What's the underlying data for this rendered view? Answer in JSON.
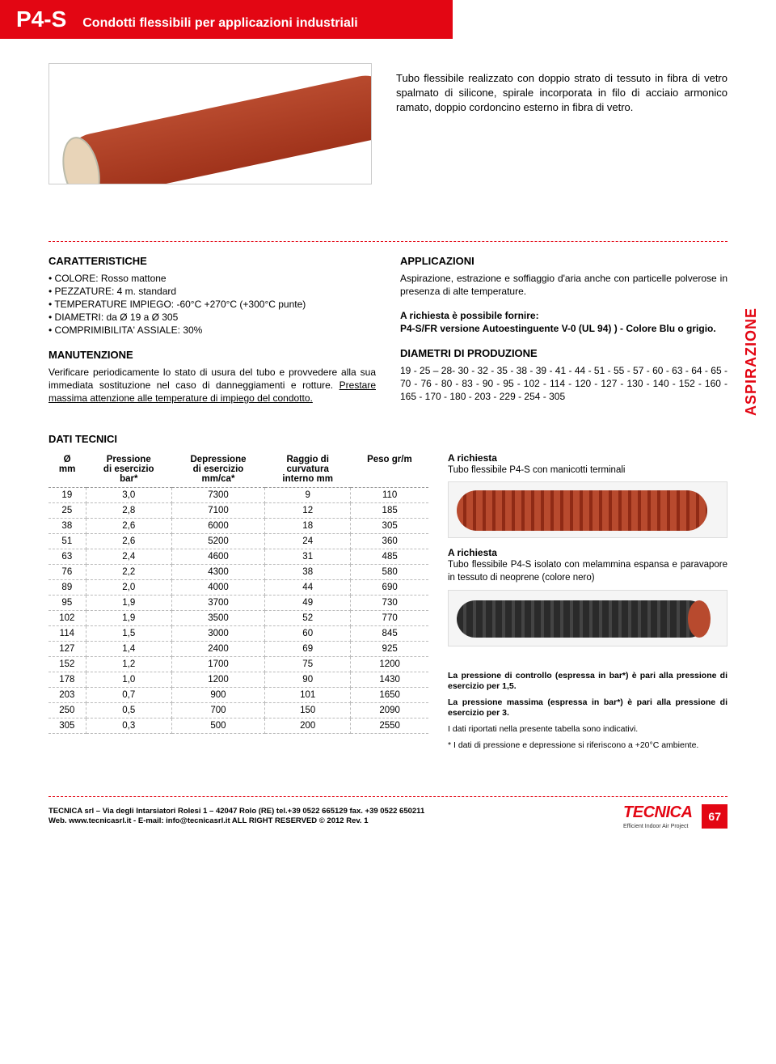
{
  "header": {
    "code": "P4-S",
    "subtitle": "Condotti flessibili per applicazioni industriali"
  },
  "hero_text": "Tubo flessibile realizzato con doppio strato di tessuto in fibra di vetro spalmato di silicone, spirale incorporata in filo di acciaio armonico ramato, doppio cordoncino esterno in fibra di vetro.",
  "vertical_label": "ASPIRAZIONE",
  "caratteristiche": {
    "title": "CARATTERISTICHE",
    "items": [
      "COLORE: Rosso mattone",
      "PEZZATURE: 4 m. standard",
      "TEMPERATURE IMPIEGO: -60°C +270°C (+300°C punte)",
      "DIAMETRI: da Ø 19 a Ø 305",
      "COMPRIMIBILITA' ASSIALE: 30%"
    ]
  },
  "manutenzione": {
    "title": "MANUTENZIONE",
    "text_a": "Verificare periodicamente lo stato di usura del tubo e provvedere alla sua immediata sostituzione nel caso di danneggiamenti e rotture. ",
    "text_b": "Prestare massima attenzione alle temperature di impiego del condotto."
  },
  "applicazioni": {
    "title": "APPLICAZIONI",
    "text": "Aspirazione, estrazione e soffiaggio d'aria anche con particelle polverose in presenza di alte temperature.",
    "fornire_title": "A richiesta è possibile fornire:",
    "fornire_text": "P4-S/FR versione Autoestinguente V-0 (UL 94) ) - Colore Blu o grigio."
  },
  "diametri": {
    "title": "DIAMETRI DI PRODUZIONE",
    "text": "19 - 25 – 28- 30 - 32 - 35 - 38 - 39 - 41 - 44 - 51 - 55 - 57 - 60 - 63 - 64 - 65 - 70 - 76 - 80 - 83 - 90 - 95 - 102 - 114 - 120 - 127 - 130 - 140 - 152 - 160 - 165 - 170 - 180 - 203 - 229 - 254 - 305"
  },
  "dati_tecnici_title": "DATI TECNICI",
  "table": {
    "headers": {
      "c0a": "Ø",
      "c0b": "mm",
      "c1a": "Pressione",
      "c1b": "di esercizio",
      "c1c": "bar*",
      "c2a": "Depressione",
      "c2b": "di esercizio",
      "c2c": "mm/ca*",
      "c3a": "Raggio di",
      "c3b": "curvatura",
      "c3c": "interno mm",
      "c4a": "Peso gr/m"
    },
    "rows": [
      [
        "19",
        "3,0",
        "7300",
        "9",
        "110"
      ],
      [
        "25",
        "2,8",
        "7100",
        "12",
        "185"
      ],
      [
        "38",
        "2,6",
        "6000",
        "18",
        "305"
      ],
      [
        "51",
        "2,6",
        "5200",
        "24",
        "360"
      ],
      [
        "63",
        "2,4",
        "4600",
        "31",
        "485"
      ],
      [
        "76",
        "2,2",
        "4300",
        "38",
        "580"
      ],
      [
        "89",
        "2,0",
        "4000",
        "44",
        "690"
      ],
      [
        "95",
        "1,9",
        "3700",
        "49",
        "730"
      ],
      [
        "102",
        "1,9",
        "3500",
        "52",
        "770"
      ],
      [
        "114",
        "1,5",
        "3000",
        "60",
        "845"
      ],
      [
        "127",
        "1,4",
        "2400",
        "69",
        "925"
      ],
      [
        "152",
        "1,2",
        "1700",
        "75",
        "1200"
      ],
      [
        "178",
        "1,0",
        "1200",
        "90",
        "1430"
      ],
      [
        "203",
        "0,7",
        "900",
        "101",
        "1650"
      ],
      [
        "250",
        "0,5",
        "700",
        "150",
        "2090"
      ],
      [
        "305",
        "0,3",
        "500",
        "200",
        "2550"
      ]
    ]
  },
  "side": {
    "b1_title": "A richiesta",
    "b1_text": "Tubo flessibile P4-S con manicotti terminali",
    "b2_title": "A richiesta",
    "b2_text": "Tubo flessibile P4-S isolato con melammina espansa e paravapore in tessuto di neoprene (colore nero)",
    "notes": [
      "La pressione di controllo (espressa in bar*) è pari alla pressione di esercizio per 1,5.",
      "La pressione massima  (espressa in bar*) è pari alla pressione di esercizio per 3.",
      "I dati riportati nella presente tabella sono indicativi.",
      "* I dati di pressione e depressione si riferiscono a +20°C ambiente."
    ]
  },
  "footer": {
    "line1": "TECNICA srl – Via degli Intarsiatori Rolesi 1 – 42047 Rolo (RE) tel.+39 0522 665129 fax. +39 0522 650211",
    "line2": "Web. www.tecnicasrl.it  - E-mail: info@tecnicasrl.it  ALL RIGHT RESERVED © 2012  Rev. 1",
    "logo": "TECNICA",
    "logo_sub": "Efficient Indoor Air Project",
    "page": "67"
  },
  "colors": {
    "brand_red": "#e30613",
    "tube_red": "#a0331b",
    "text": "#000000",
    "bg": "#ffffff"
  }
}
